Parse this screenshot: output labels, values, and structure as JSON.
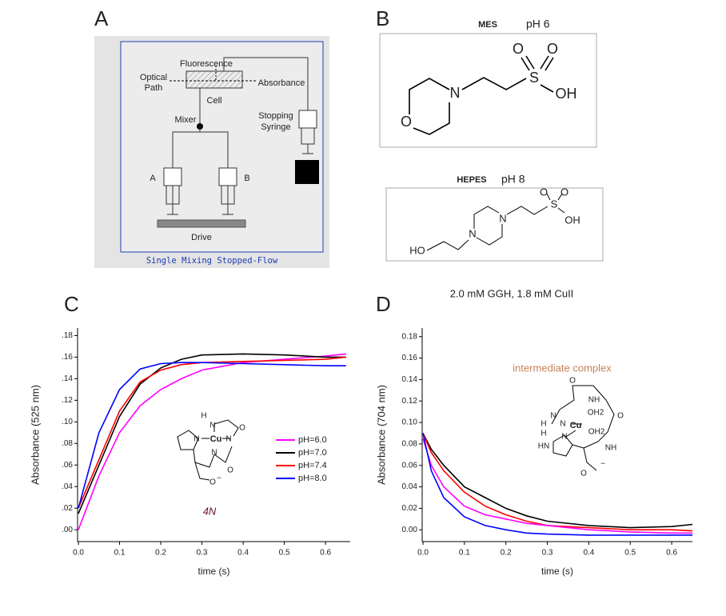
{
  "panel_labels": [
    "A",
    "B",
    "C",
    "D"
  ],
  "schematic": {
    "labels": {
      "fluorescence": "Fluorescence",
      "optical": "Optical",
      "path": "Path",
      "absorbance": "Absorbance",
      "cell": "Cell",
      "mixer": "Mixer",
      "stopping": "Stopping",
      "syringe": "Syringe",
      "a": "A",
      "b": "B",
      "drive": "Drive"
    },
    "caption": "Single Mixing Stopped-Flow"
  },
  "buffers": [
    {
      "name": "MES",
      "ph": "pH 6",
      "atoms": [
        "O",
        "O",
        "S",
        "OH",
        "N",
        "O"
      ]
    },
    {
      "name": "HEPES",
      "ph": "pH 8",
      "atoms": [
        "O",
        "O",
        "S",
        "OH",
        "N",
        "N",
        "HO"
      ]
    }
  ],
  "chart_data": [
    {
      "type": "line",
      "x_label": "time (s)",
      "y_label": "Absorbance (525 nm)",
      "annotation": "4N",
      "structure_atoms": [
        "H",
        "N",
        "N",
        "Cu",
        "N",
        "N",
        "O",
        "O",
        "O",
        "−"
      ],
      "xlim": [
        -0.002,
        0.66
      ],
      "ylim": [
        -0.011,
        0.187
      ],
      "xticks": [
        {
          "value": 0,
          "label": "0.0"
        },
        0.1,
        0.2,
        0.3,
        0.4,
        0.5,
        0.6
      ],
      "yticks": [
        {
          "value": 0,
          "label": ".00"
        },
        {
          "value": 0.02,
          "label": ".02"
        },
        {
          "value": 0.04,
          "label": ".04"
        },
        {
          "value": 0.06,
          "label": ".06"
        },
        {
          "value": 0.08,
          "label": ".08"
        },
        {
          "value": 0.1,
          "label": ".10"
        },
        {
          "value": 0.12,
          "label": ".12"
        },
        {
          "value": 0.14,
          "label": ".14"
        },
        {
          "value": 0.16,
          "label": ".16"
        },
        {
          "value": 0.18,
          "label": ".18"
        }
      ],
      "legend": "center-right",
      "x": [
        0,
        0.05,
        0.1,
        0.15,
        0.2,
        0.25,
        0.3,
        0.4,
        0.5,
        0.6,
        0.65
      ],
      "series": [
        {
          "name": "pH=6.0",
          "color": "#ff00ff",
          "values": [
            0.0,
            0.05,
            0.09,
            0.115,
            0.13,
            0.14,
            0.148,
            0.155,
            0.158,
            0.161,
            0.163
          ]
        },
        {
          "name": "pH=7.0",
          "color": "#000000",
          "values": [
            0.015,
            0.06,
            0.105,
            0.135,
            0.15,
            0.158,
            0.162,
            0.163,
            0.162,
            0.16,
            0.16
          ]
        },
        {
          "name": "pH=7.4",
          "color": "#ff0000",
          "values": [
            0.02,
            0.065,
            0.11,
            0.137,
            0.148,
            0.153,
            0.155,
            0.156,
            0.157,
            0.158,
            0.16
          ]
        },
        {
          "name": "pH=8.0",
          "color": "#0000ff",
          "values": [
            0.02,
            0.09,
            0.13,
            0.149,
            0.154,
            0.155,
            0.155,
            0.154,
            0.153,
            0.152,
            0.152
          ]
        }
      ]
    },
    {
      "type": "line",
      "title": "2.0 mM GGH, 1.8 mM CuII",
      "x_label": "time (s)",
      "y_label": "Absorbance (704 nm)",
      "annotation": "intermediate complex",
      "structure_atoms": [
        "H",
        "N",
        "H",
        "N",
        "Cu",
        "OH2",
        "OH2",
        "HN",
        "N",
        "NH",
        "NH",
        "O",
        "O",
        "O",
        "−"
      ],
      "xlim": [
        -0.002,
        0.65
      ],
      "ylim": [
        -0.011,
        0.188
      ],
      "xticks": [
        {
          "value": 0,
          "label": "0.0"
        },
        0.1,
        0.2,
        0.3,
        0.4,
        0.5,
        0.6
      ],
      "yticks": [
        {
          "value": 0,
          "label": "0.00"
        },
        0.02,
        0.04,
        0.06,
        0.08,
        {
          "value": 0.1,
          "label": "0.10"
        },
        0.12,
        0.14,
        0.16,
        0.18
      ],
      "x": [
        0,
        0.02,
        0.05,
        0.1,
        0.15,
        0.2,
        0.25,
        0.3,
        0.4,
        0.5,
        0.6,
        0.65
      ],
      "series": [
        {
          "color": "#000000",
          "values": [
            0.09,
            0.075,
            0.06,
            0.04,
            0.03,
            0.02,
            0.013,
            0.008,
            0.004,
            0.002,
            0.003,
            0.005
          ]
        },
        {
          "color": "#ff0000",
          "values": [
            0.09,
            0.072,
            0.055,
            0.035,
            0.022,
            0.014,
            0.008,
            0.004,
            0.002,
            0.0,
            0.0,
            -0.001
          ]
        },
        {
          "color": "#ff00ff",
          "values": [
            0.085,
            0.06,
            0.04,
            0.022,
            0.014,
            0.01,
            0.006,
            0.004,
            0.0,
            -0.002,
            -0.003,
            -0.003
          ]
        },
        {
          "color": "#0000ff",
          "values": [
            0.09,
            0.055,
            0.03,
            0.012,
            0.004,
            0.0,
            -0.003,
            -0.004,
            -0.005,
            -0.005,
            -0.005,
            -0.005
          ]
        }
      ]
    }
  ]
}
